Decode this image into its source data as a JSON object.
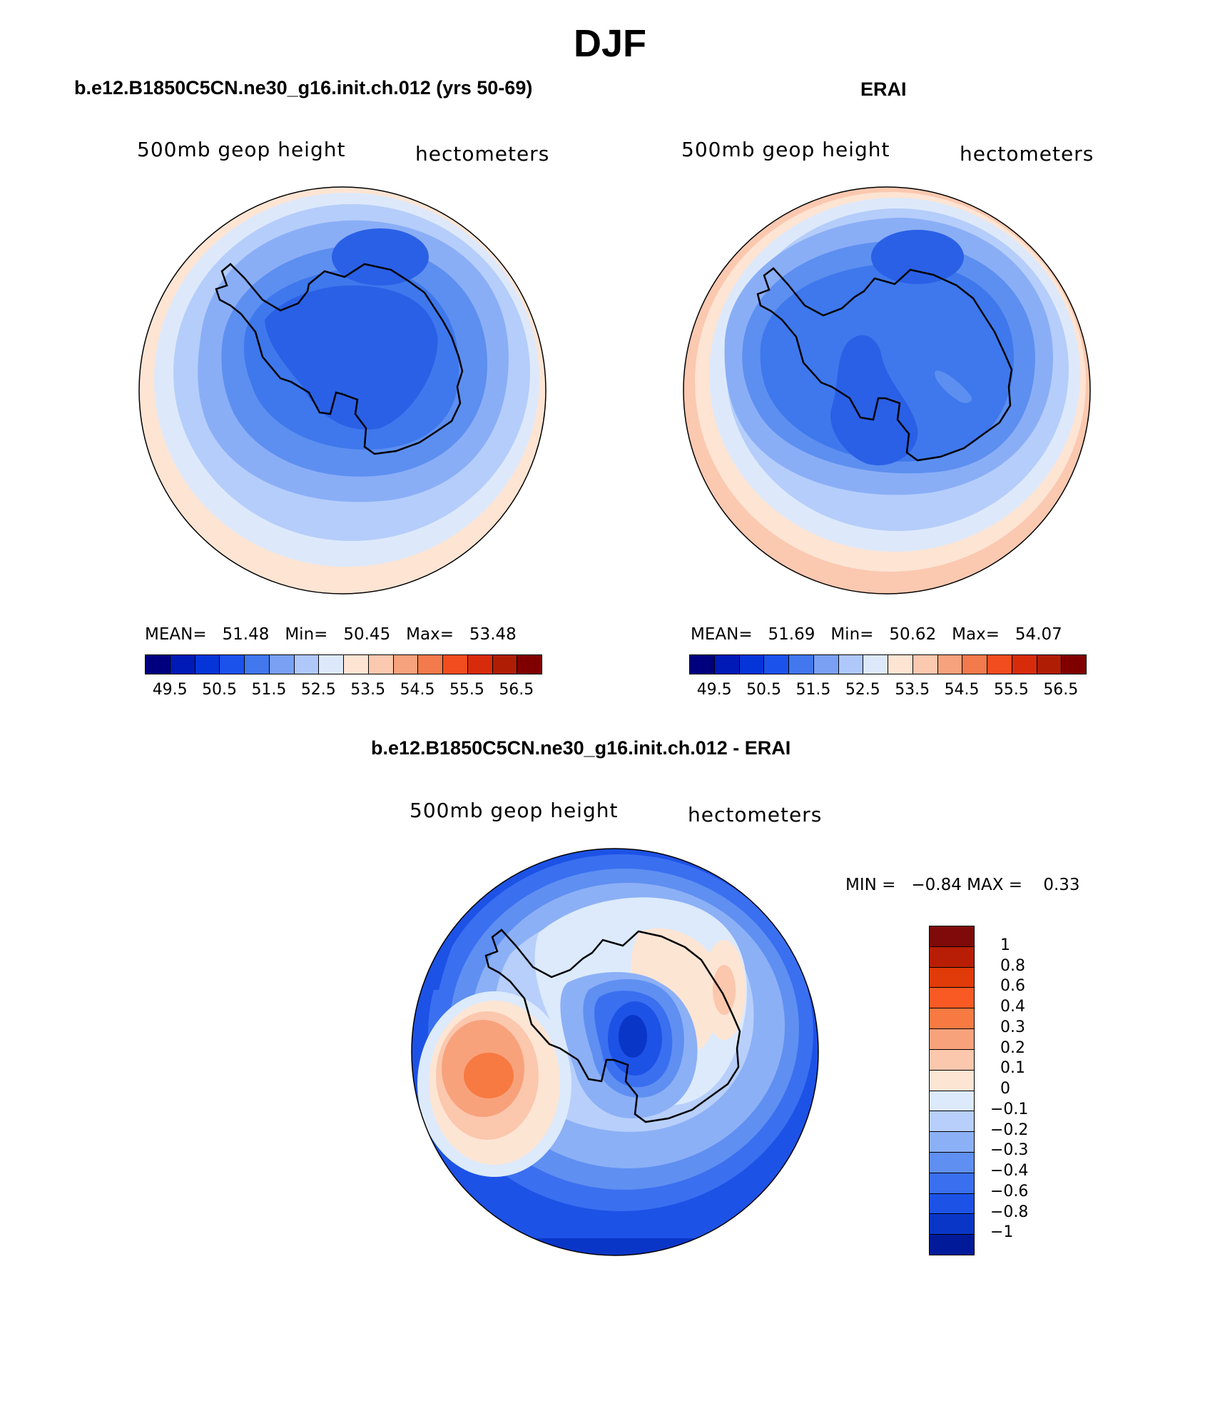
{
  "main_title": "DJF",
  "variable": "500mb geop height",
  "units": "hectometers",
  "panels": [
    {
      "title": "b.e12.B1850C5CN.ne30_g16.init.ch.012 (yrs 50-69)",
      "mean_label": "MEAN=",
      "mean": "51.48",
      "min_label": "Min=",
      "min": "50.45",
      "max_label": "Max=",
      "max": "53.48",
      "ring_colors": [
        "#fde4d3",
        "#dde9fb",
        "#b5cdfa",
        "#8aaef6",
        "#5d8ff0"
      ],
      "core_colors": [
        "#3e78ec",
        "#2a60e6"
      ]
    },
    {
      "title": "ERAI",
      "mean_label": "MEAN=",
      "mean": "51.69",
      "min_label": "Min=",
      "min": "50.62",
      "max_label": "Max=",
      "max": "54.07",
      "ring_colors": [
        "#fbc8b0",
        "#fde4d3",
        "#dde9fb",
        "#b5cdfa",
        "#8aaef6",
        "#5d8ff0"
      ],
      "core_colors": [
        "#3e78ec",
        "#2a60e6"
      ]
    }
  ],
  "abs_colorbar": {
    "colors": [
      "#00007f",
      "#001ab8",
      "#0535d8",
      "#1c52ec",
      "#4277ee",
      "#7aa0f4",
      "#afc8fa",
      "#dde9fb",
      "#fde4d3",
      "#fbc8b0",
      "#f6a27c",
      "#f27a4c",
      "#f14d1f",
      "#d82b0c",
      "#b01d05",
      "#800000"
    ],
    "labels": [
      "49.5",
      "50.5",
      "51.5",
      "52.5",
      "53.5",
      "54.5",
      "55.5",
      "56.5"
    ]
  },
  "diff": {
    "title": "b.e12.B1850C5CN.ne30_g16.init.ch.012 - ERAI",
    "min_label": "MIN =",
    "min": "−0.84",
    "max_label": "MAX =",
    "max": "0.33",
    "colorbar_colors": [
      "#7f0a0a",
      "#b81e06",
      "#e03b09",
      "#f95a23",
      "#f77a42",
      "#f8a27c",
      "#fbc7ad",
      "#fde5d4",
      "#dceafc",
      "#b7cffa",
      "#8cb0f6",
      "#5f8ff1",
      "#3a6ff0",
      "#1d52e6",
      "#0a36c8",
      "#001a9a"
    ],
    "colorbar_labels": [
      "1",
      "0.8",
      "0.6",
      "0.4",
      "0.3",
      "0.2",
      "0.1",
      "0",
      "−0.1",
      "−0.2",
      "−0.3",
      "−0.4",
      "−0.6",
      "−0.8",
      "−1"
    ]
  }
}
